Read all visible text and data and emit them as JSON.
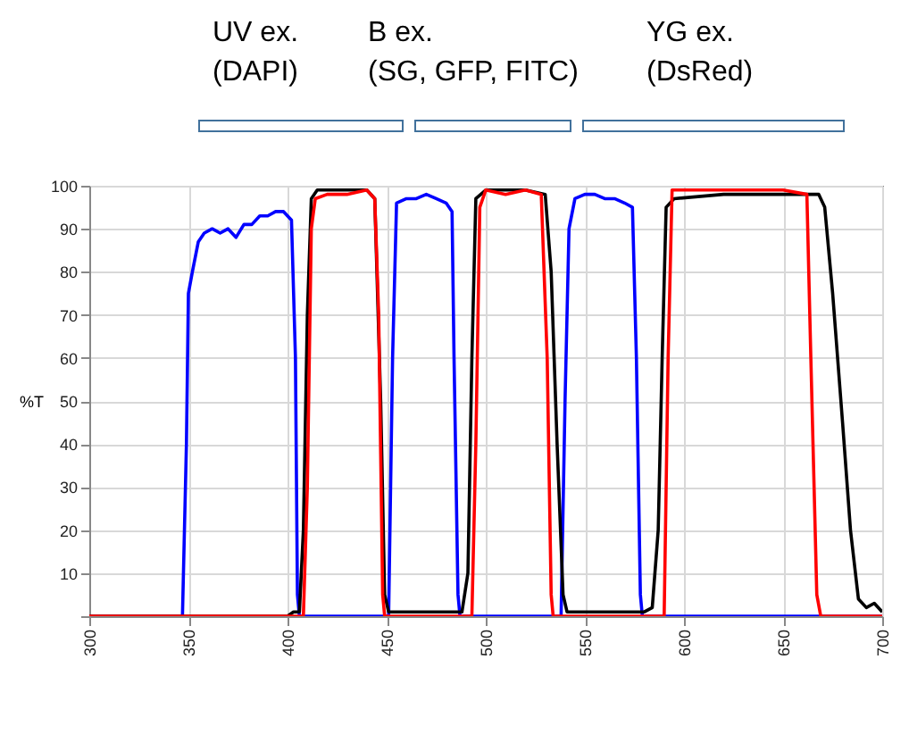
{
  "chart_data": {
    "type": "line",
    "ylabel": "%T",
    "xlim": [
      300,
      700
    ],
    "xticks": [
      300,
      350,
      400,
      450,
      500,
      550,
      600,
      650,
      700
    ],
    "ylim": [
      0,
      100
    ],
    "yticks": [
      {
        "value": 0,
        "label": null
      },
      10,
      20,
      30,
      40,
      50,
      60,
      70,
      80,
      90,
      100
    ],
    "grid": true,
    "annotations": [
      "UV ex.\n(DAPI)",
      "B ex.\n(SG, GFP, FITC)",
      "YG ex.\n(DsRed)"
    ],
    "series": [
      {
        "color": "#0000ff",
        "x": [
          300,
          347,
          349,
          350,
          352,
          355,
          358,
          362,
          366,
          370,
          374,
          378,
          382,
          386,
          390,
          394,
          398,
          402,
          404,
          405,
          406,
          451,
          453,
          455,
          460,
          465,
          470,
          475,
          480,
          483,
          484,
          486,
          487,
          538,
          540,
          542,
          545,
          550,
          555,
          560,
          565,
          570,
          574,
          576,
          578,
          579,
          700
        ],
        "values": [
          0,
          0,
          40,
          75,
          80,
          87,
          89,
          90,
          89,
          90,
          88,
          91,
          91,
          93,
          93,
          94,
          94,
          92,
          60,
          5,
          0,
          0,
          60,
          96,
          97,
          97,
          98,
          97,
          96,
          94,
          60,
          5,
          0,
          0,
          50,
          90,
          97,
          98,
          98,
          97,
          97,
          96,
          95,
          60,
          5,
          0,
          0
        ]
      },
      {
        "color": "#000000",
        "x": [
          300,
          400,
          403,
          406,
          408,
          410,
          412,
          415,
          420,
          430,
          440,
          444,
          447,
          449,
          451,
          470,
          480,
          488,
          491,
          493,
          495,
          500,
          510,
          520,
          530,
          533,
          536,
          539,
          541,
          570,
          580,
          584,
          587,
          589,
          591,
          595,
          620,
          650,
          668,
          671,
          675,
          680,
          684,
          688,
          692,
          696,
          700
        ],
        "values": [
          0,
          0,
          1,
          1,
          20,
          70,
          97,
          99,
          99,
          99,
          99,
          97,
          50,
          5,
          1,
          1,
          1,
          1,
          10,
          60,
          97,
          99,
          99,
          99,
          98,
          80,
          40,
          5,
          1,
          1,
          1,
          2,
          20,
          60,
          95,
          97,
          98,
          98,
          98,
          95,
          75,
          45,
          20,
          4,
          2,
          3,
          1
        ]
      },
      {
        "color": "#ff0000",
        "x": [
          300,
          408,
          410,
          412,
          414,
          420,
          430,
          440,
          444,
          446,
          448,
          449,
          493,
          495,
          497,
          500,
          510,
          520,
          528,
          531,
          533,
          534,
          590,
          592,
          594,
          620,
          650,
          662,
          664,
          667,
          669,
          700
        ],
        "values": [
          0,
          0,
          30,
          90,
          97,
          98,
          98,
          99,
          97,
          70,
          5,
          0,
          0,
          40,
          95,
          99,
          98,
          99,
          98,
          60,
          5,
          0,
          0,
          60,
          99,
          99,
          99,
          98,
          60,
          5,
          0,
          0
        ]
      }
    ]
  }
}
